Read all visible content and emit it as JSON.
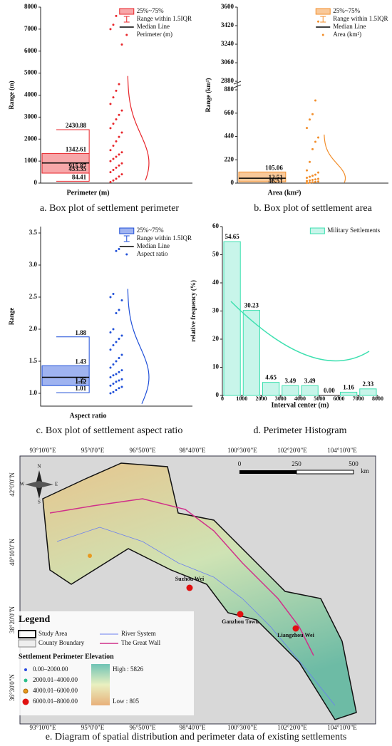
{
  "chart_data": [
    {
      "type": "box",
      "caption": "a. Box plot of settlement perimeter",
      "ylabel": "Range (m)",
      "xlabel": "Perimeter (m)",
      "color": "#e8262b",
      "fill": "#f7a7a9",
      "ylim": [
        0,
        8000
      ],
      "yticks": [
        0,
        1000,
        2000,
        3000,
        4000,
        5000,
        6000,
        7000,
        8000
      ],
      "box": {
        "low": 84.41,
        "q1": 453.35,
        "median": 915.87,
        "q3": 1342.61,
        "high": 2430.88
      },
      "points": [
        50,
        120,
        200,
        300,
        400,
        500,
        600,
        700,
        800,
        900,
        1000,
        1100,
        1200,
        1300,
        1400,
        1500,
        1700,
        1900,
        2100,
        2300,
        2500,
        2700,
        2900,
        3100,
        3300,
        3600,
        3900,
        4200,
        4500,
        6300,
        7000,
        7200,
        7600
      ],
      "legend": [
        "25%~75%",
        "Range within 1.5IQR",
        "Median Line",
        "Perimeter (m)"
      ]
    },
    {
      "type": "box",
      "caption": "b. Box plot of settlement area",
      "ylabel": "Range (km²)",
      "xlabel": "Area (km²)",
      "color": "#f28e2b",
      "fill": "#f9c99a",
      "ylim": [
        0,
        3600
      ],
      "ybreak": [
        880,
        2880
      ],
      "yticks": [
        0,
        220,
        440,
        660,
        880,
        2880,
        3060,
        3240,
        3420,
        3600
      ],
      "box": {
        "q1": 12.51,
        "median": 46.51,
        "q3": 105.06
      },
      "points": [
        2,
        5,
        8,
        12,
        15,
        20,
        25,
        30,
        35,
        40,
        50,
        60,
        70,
        80,
        100,
        120,
        200,
        320,
        390,
        430,
        520,
        600,
        650,
        780,
        3460
      ],
      "legend": [
        "25%~75%",
        "Range within 1.5IQR",
        "Median Line",
        "Area (km²)"
      ]
    },
    {
      "type": "box",
      "caption": "c. Box plot of settlement aspect ratio",
      "ylabel": "Range",
      "xlabel": "Aspect ratio",
      "color": "#1f4fd8",
      "fill": "#9fb3f0",
      "ylim": [
        0.8,
        3.6
      ],
      "yticks": [
        {
          "value": 1,
          "label": "1.0"
        },
        1.5,
        {
          "value": 2,
          "label": "2.0"
        },
        2.5,
        {
          "value": 3,
          "label": "3.0"
        },
        3.5
      ],
      "box": {
        "low": 1.01,
        "q1": 1.12,
        "median": 1.25,
        "q3": 1.43,
        "high": 1.88
      },
      "points": [
        1.0,
        1.02,
        1.05,
        1.08,
        1.1,
        1.12,
        1.15,
        1.18,
        1.2,
        1.22,
        1.25,
        1.28,
        1.3,
        1.33,
        1.36,
        1.4,
        1.45,
        1.5,
        1.55,
        1.6,
        1.68,
        1.75,
        1.8,
        1.85,
        1.9,
        1.95,
        2.0,
        2.25,
        2.3,
        2.45,
        2.5,
        2.55,
        3.22,
        3.25
      ],
      "legend": [
        "25%~75%",
        "Range within 1.5IQR",
        "Median Line",
        "Aspect ratio"
      ]
    },
    {
      "type": "histogram",
      "caption": "d. Perimeter Histogram",
      "ylabel": "relative frequency (%)",
      "xlabel": "Interval center (m)",
      "color": "#3ee0b0",
      "fill": "#c8f5ea",
      "bins": [
        0,
        1000,
        2000,
        3000,
        4000,
        5000,
        6000,
        7000,
        8000
      ],
      "values": [
        54.65,
        30.23,
        4.65,
        3.49,
        3.49,
        0,
        1.16,
        2.33
      ],
      "value_labels": [
        "54.65",
        "30.23",
        "4.65",
        "3.49",
        "3.49",
        "0.00",
        "1.16",
        "2.33"
      ],
      "xlim": [
        0,
        8000
      ],
      "xticks": [
        0,
        1000,
        2000,
        3000,
        4000,
        5000,
        6000,
        7000,
        8000
      ],
      "ylim": [
        0,
        60
      ],
      "yticks": [
        0,
        10,
        20,
        30,
        40,
        50,
        60
      ],
      "legend": [
        "Military Settlements"
      ]
    }
  ],
  "map": {
    "caption": "e. Diagram of spatial distribution and perimeter data of existing settlements",
    "lon_labels": [
      "93°10'0\"E",
      "95°0'0\"E",
      "96°50'0\"E",
      "98°40'0\"E",
      "100°30'0\"E",
      "102°20'0\"E",
      "104°10'0\"E"
    ],
    "lat_labels": [
      "42°0'0\"N",
      "40°10'0\"N",
      "38°20'0\"N",
      "36°30'0\"N"
    ],
    "scale": [
      "0",
      "250",
      "500",
      "km"
    ],
    "compass": [
      "N",
      "S",
      "W",
      "E"
    ],
    "towns": [
      "Suzhou Wei",
      "Ganzhou Town",
      "Liangzhou Wei"
    ],
    "legend": {
      "title": "Legend",
      "study_area": "Study Area",
      "county": "County Boundary",
      "river": "River System",
      "wall": "The Great Wall",
      "elev_title": "Settlement Perimeter Elevation",
      "items": [
        "0.00–2000.00",
        "2000.01–4000.00",
        "4000.01–6000.00",
        "6000.01–8000.00"
      ],
      "high": "High : 5826",
      "low": "Low : 805"
    }
  }
}
